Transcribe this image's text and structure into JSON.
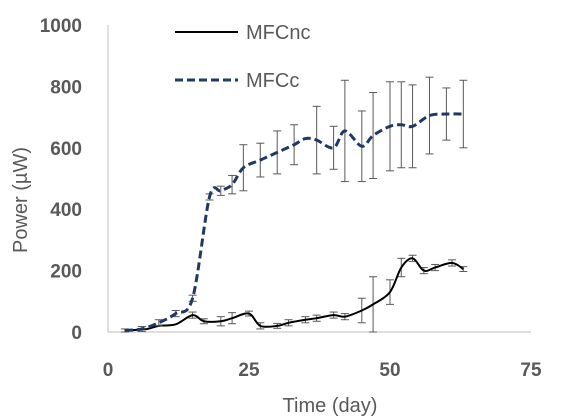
{
  "chart_data": {
    "type": "line",
    "xlabel": "Time (day)",
    "ylabel": "Power (µW)",
    "xlim": [
      0,
      75
    ],
    "ylim": [
      0,
      1000
    ],
    "xticks": [
      "0",
      "25",
      "50",
      "75"
    ],
    "yticks": [
      "0",
      "200",
      "400",
      "600",
      "800",
      "1000"
    ],
    "grid": false,
    "legend_position": "top-left",
    "series": [
      {
        "name": "MFCnc",
        "color": "#000000",
        "dash": "solid",
        "x": [
          3,
          5,
          7,
          9,
          12,
          15,
          17,
          20,
          22,
          25,
          27,
          30,
          32,
          35,
          37,
          40,
          42,
          45,
          47,
          50,
          52,
          54,
          56,
          58,
          61,
          63
        ],
        "y": [
          5,
          7,
          10,
          20,
          25,
          55,
          35,
          35,
          45,
          60,
          20,
          20,
          30,
          40,
          45,
          55,
          50,
          70,
          90,
          130,
          210,
          240,
          200,
          210,
          225,
          205
        ],
        "err": [
          0,
          0,
          0,
          0,
          0,
          10,
          8,
          15,
          18,
          8,
          10,
          8,
          10,
          10,
          10,
          10,
          10,
          40,
          90,
          40,
          30,
          10,
          10,
          10,
          10,
          8
        ]
      },
      {
        "name": "MFCc",
        "color": "#1f3864",
        "dash": "dashed",
        "x": [
          3,
          6,
          9,
          12,
          15,
          18,
          20,
          22,
          24,
          27,
          30,
          33,
          35,
          37,
          40,
          42,
          45,
          47,
          50,
          52,
          54,
          57,
          60,
          63
        ],
        "y": [
          5,
          10,
          30,
          60,
          110,
          440,
          460,
          480,
          535,
          560,
          585,
          610,
          630,
          625,
          600,
          655,
          605,
          640,
          670,
          675,
          670,
          705,
          710,
          710
        ],
        "err": [
          5,
          8,
          10,
          10,
          10,
          10,
          15,
          30,
          75,
          55,
          70,
          65,
          0,
          110,
          70,
          165,
          115,
          140,
          145,
          140,
          135,
          125,
          85,
          110
        ]
      }
    ]
  }
}
